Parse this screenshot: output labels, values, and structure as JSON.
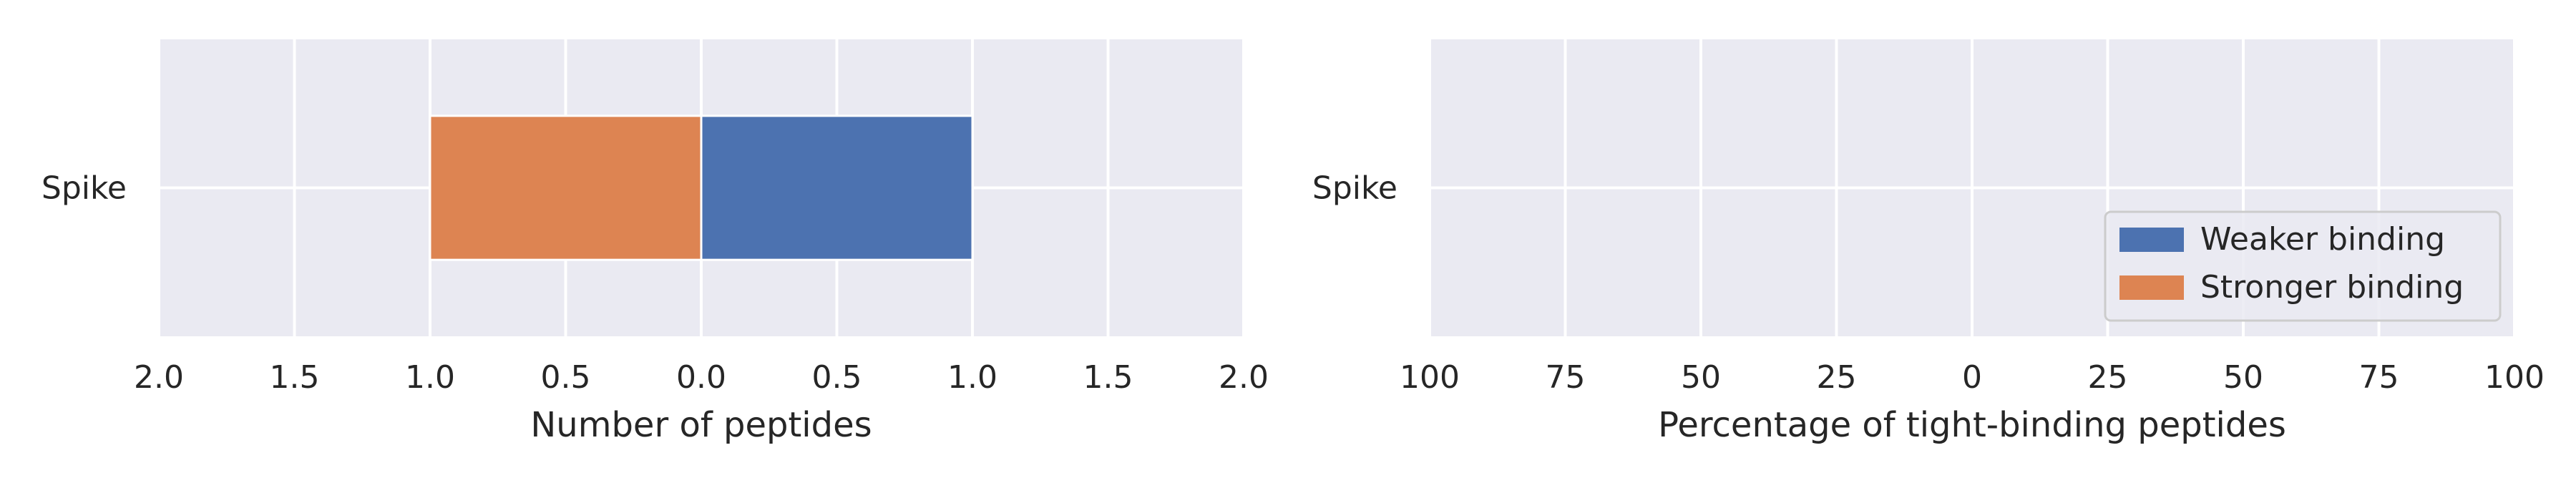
{
  "chart_data": [
    {
      "type": "bar",
      "orientation": "horizontal",
      "diverging": true,
      "categories": [
        "Spike"
      ],
      "series": [
        {
          "name": "Weaker binding",
          "values": [
            1.0
          ],
          "side": "right",
          "color": "#4c72b0"
        },
        {
          "name": "Stronger binding",
          "values": [
            1.0
          ],
          "side": "left",
          "color": "#dd8452"
        }
      ],
      "xlabel": "Number of peptides",
      "xlim": [
        -2,
        2
      ],
      "xticks": [
        -2,
        -1.5,
        -1,
        -0.5,
        0,
        0.5,
        1,
        1.5,
        2
      ],
      "xtick_labels": [
        "2.0",
        "1.5",
        "1.0",
        "0.5",
        "0.0",
        "0.5",
        "1.0",
        "1.5",
        "2.0"
      ],
      "grid": true,
      "legend": null
    },
    {
      "type": "bar",
      "orientation": "horizontal",
      "diverging": true,
      "categories": [
        "Spike"
      ],
      "series": [
        {
          "name": "Weaker binding",
          "values": [
            0
          ],
          "side": "right",
          "color": "#4c72b0"
        },
        {
          "name": "Stronger binding",
          "values": [
            0
          ],
          "side": "left",
          "color": "#dd8452"
        }
      ],
      "xlabel": "Percentage of tight-binding peptides",
      "xlim": [
        -100,
        100
      ],
      "xticks": [
        -100,
        -75,
        -50,
        -25,
        0,
        25,
        50,
        75,
        100
      ],
      "xtick_labels": [
        "100",
        "75",
        "50",
        "25",
        "0",
        "25",
        "50",
        "75",
        "100"
      ],
      "grid": true,
      "legend": "lower-right"
    }
  ],
  "colors": {
    "plot_background": "#eaeaf2",
    "grid": "#ffffff",
    "text": "#262626"
  }
}
